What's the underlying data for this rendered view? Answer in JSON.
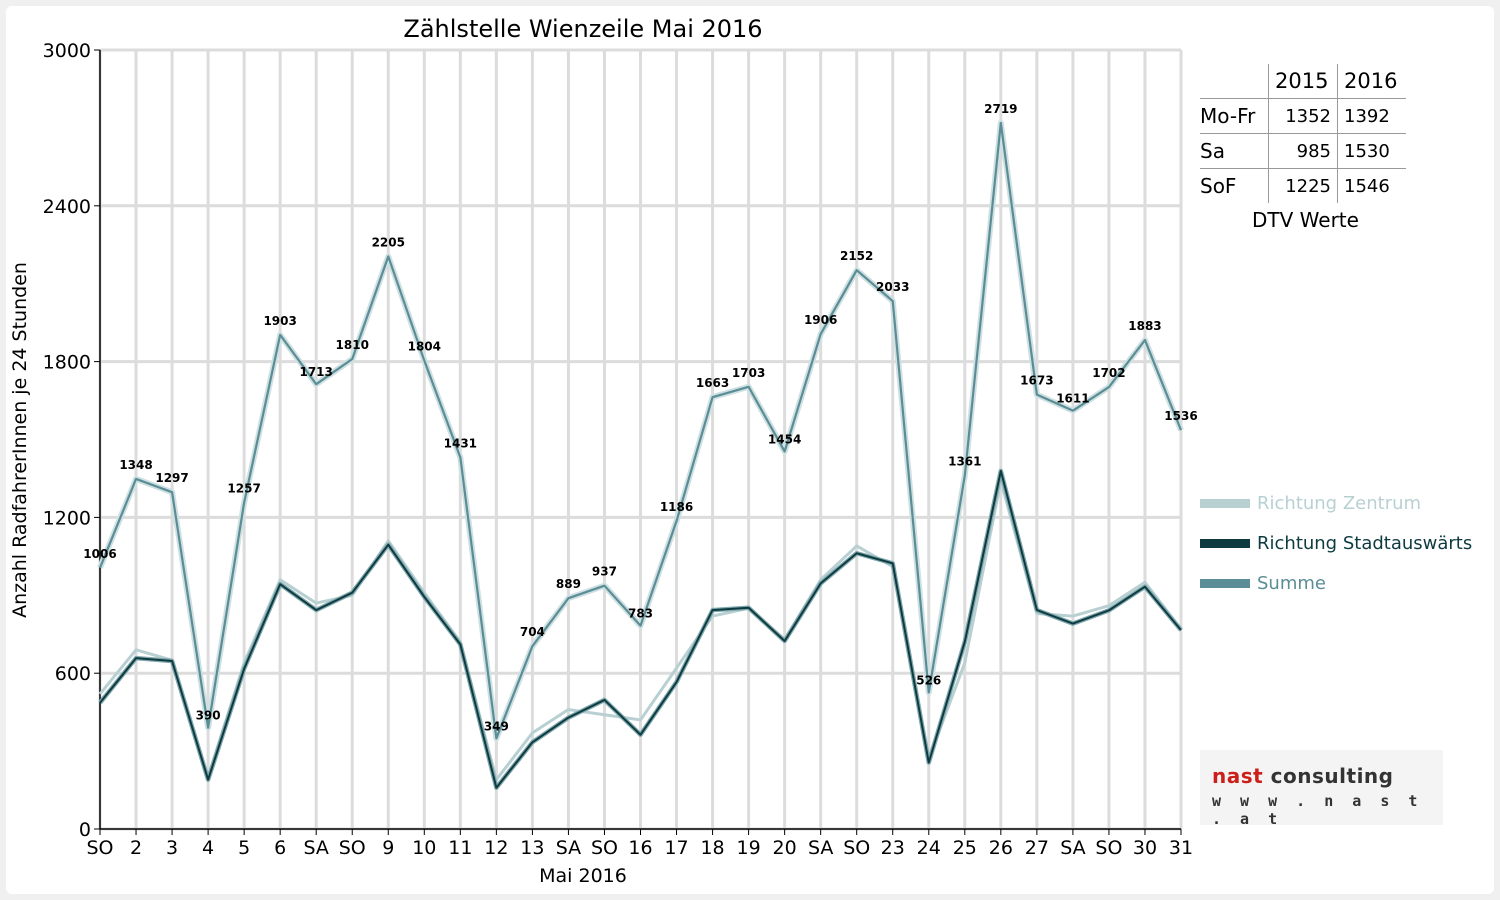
{
  "chart_data": {
    "type": "line",
    "title": "Zählstelle Wienzeile Mai 2016",
    "xlabel": "Mai 2016",
    "ylabel": "Anzahl RadfahrerInnen je 24 Stunden",
    "ylim": [
      0,
      3000
    ],
    "yticks": [
      0,
      600,
      1200,
      1800,
      2400,
      3000
    ],
    "grid": true,
    "legend_position": "right",
    "categories": [
      "SO",
      "2",
      "3",
      "4",
      "5",
      "6",
      "SA",
      "SO",
      "9",
      "10",
      "11",
      "12",
      "13",
      "SA",
      "SO",
      "16",
      "17",
      "18",
      "19",
      "20",
      "SA",
      "SO",
      "23",
      "24",
      "25",
      "26",
      "27",
      "SA",
      "SO",
      "30",
      "31"
    ],
    "category_red": [
      true,
      false,
      false,
      false,
      true,
      false,
      false,
      true,
      false,
      false,
      false,
      false,
      false,
      false,
      true,
      true,
      false,
      false,
      false,
      false,
      false,
      true,
      false,
      false,
      false,
      true,
      false,
      false,
      true,
      false,
      false
    ],
    "series": [
      {
        "name": "Richtung Zentrum",
        "color": "#b8d0d2",
        "values": [
          520,
          690,
          650,
          200,
          640,
          960,
          870,
          900,
          1110,
          910,
          720,
          190,
          370,
          460,
          440,
          420,
          620,
          820,
          850,
          730,
          960,
          1090,
          1010,
          270,
          640,
          1340,
          830,
          820,
          860,
          950,
          770
        ]
      },
      {
        "name": "Richtung Stadtauswärts",
        "color": "#0d3b40",
        "values": [
          486,
          658,
          647,
          190,
          617,
          943,
          843,
          910,
          1095,
          894,
          711,
          159,
          334,
          429,
          497,
          363,
          566,
          843,
          852,
          724,
          946,
          1062,
          1023,
          256,
          721,
          1379,
          843,
          791,
          842,
          933,
          766
        ]
      },
      {
        "name": "Summe",
        "color": "#5a8d95",
        "values": [
          1006,
          1348,
          1297,
          390,
          1257,
          1903,
          1713,
          1810,
          2205,
          1804,
          1431,
          349,
          704,
          889,
          937,
          783,
          1186,
          1663,
          1703,
          1454,
          1906,
          2152,
          2033,
          526,
          1361,
          2719,
          1673,
          1611,
          1702,
          1883,
          1536
        ]
      }
    ],
    "data_labels": [
      "1006",
      "1348",
      "1297",
      "390",
      "1257",
      "1903",
      "1713",
      "1810",
      "2205",
      "1804",
      "1431",
      "349",
      "704",
      "889",
      "937",
      "783",
      "1186",
      "1663",
      "1703",
      "1454",
      "1906",
      "2152",
      "2033",
      "526",
      "1361",
      "2719",
      "1673",
      "1611",
      "1702",
      "1883",
      "1536"
    ]
  },
  "dtv_table": {
    "headers": [
      "",
      "2015",
      "2016"
    ],
    "rows": [
      {
        "label": "Mo-Fr",
        "y2015": "1352",
        "y2016": "1392"
      },
      {
        "label": "Sa",
        "y2015": "985",
        "y2016": "1530"
      },
      {
        "label": "SoF",
        "y2015": "1225",
        "y2016": "1546"
      }
    ],
    "caption": "DTV Werte"
  },
  "logo": {
    "word1": "nast",
    "word2": "consulting",
    "url": "w w w . n a s t . a t",
    "color1": "#cc1f1a",
    "color2": "#333333"
  }
}
